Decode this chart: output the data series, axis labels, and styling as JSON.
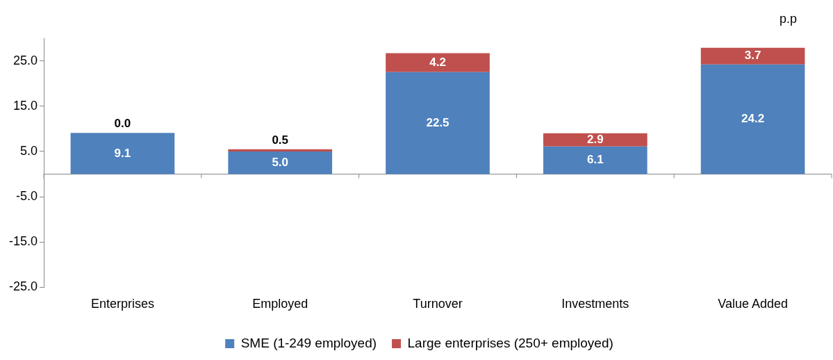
{
  "chart_data": {
    "type": "bar",
    "stacked": true,
    "ylabel": "p.p",
    "categories": [
      "Enterprises",
      "Employed",
      "Turnover",
      "Investments",
      "Value Added"
    ],
    "series": [
      {
        "name": "SME (1-249 employed)",
        "color": "#4f81bd",
        "values": [
          9.1,
          5.0,
          22.5,
          6.1,
          24.2
        ],
        "value_labels": [
          "9.1",
          "5.0",
          "22.5",
          "6.1",
          "24.2"
        ]
      },
      {
        "name": "Large enterprises (250+ employed)",
        "color": "#c0504d",
        "values": [
          0.0,
          0.5,
          4.2,
          2.9,
          3.7
        ],
        "value_labels": [
          "0.0",
          "0.5",
          "4.2",
          "2.9",
          "3.7"
        ]
      }
    ],
    "ylim": [
      -25,
      30
    ],
    "yticks": [
      {
        "value": -25,
        "label": "-25.0"
      },
      {
        "value": -15,
        "label": "-15.0"
      },
      {
        "value": -5,
        "label": "-5.0"
      },
      {
        "value": 5,
        "label": "5.0"
      },
      {
        "value": 15,
        "label": "15.0"
      },
      {
        "value": 25,
        "label": "25.0"
      }
    ],
    "grid": false,
    "legend": "bottom"
  }
}
